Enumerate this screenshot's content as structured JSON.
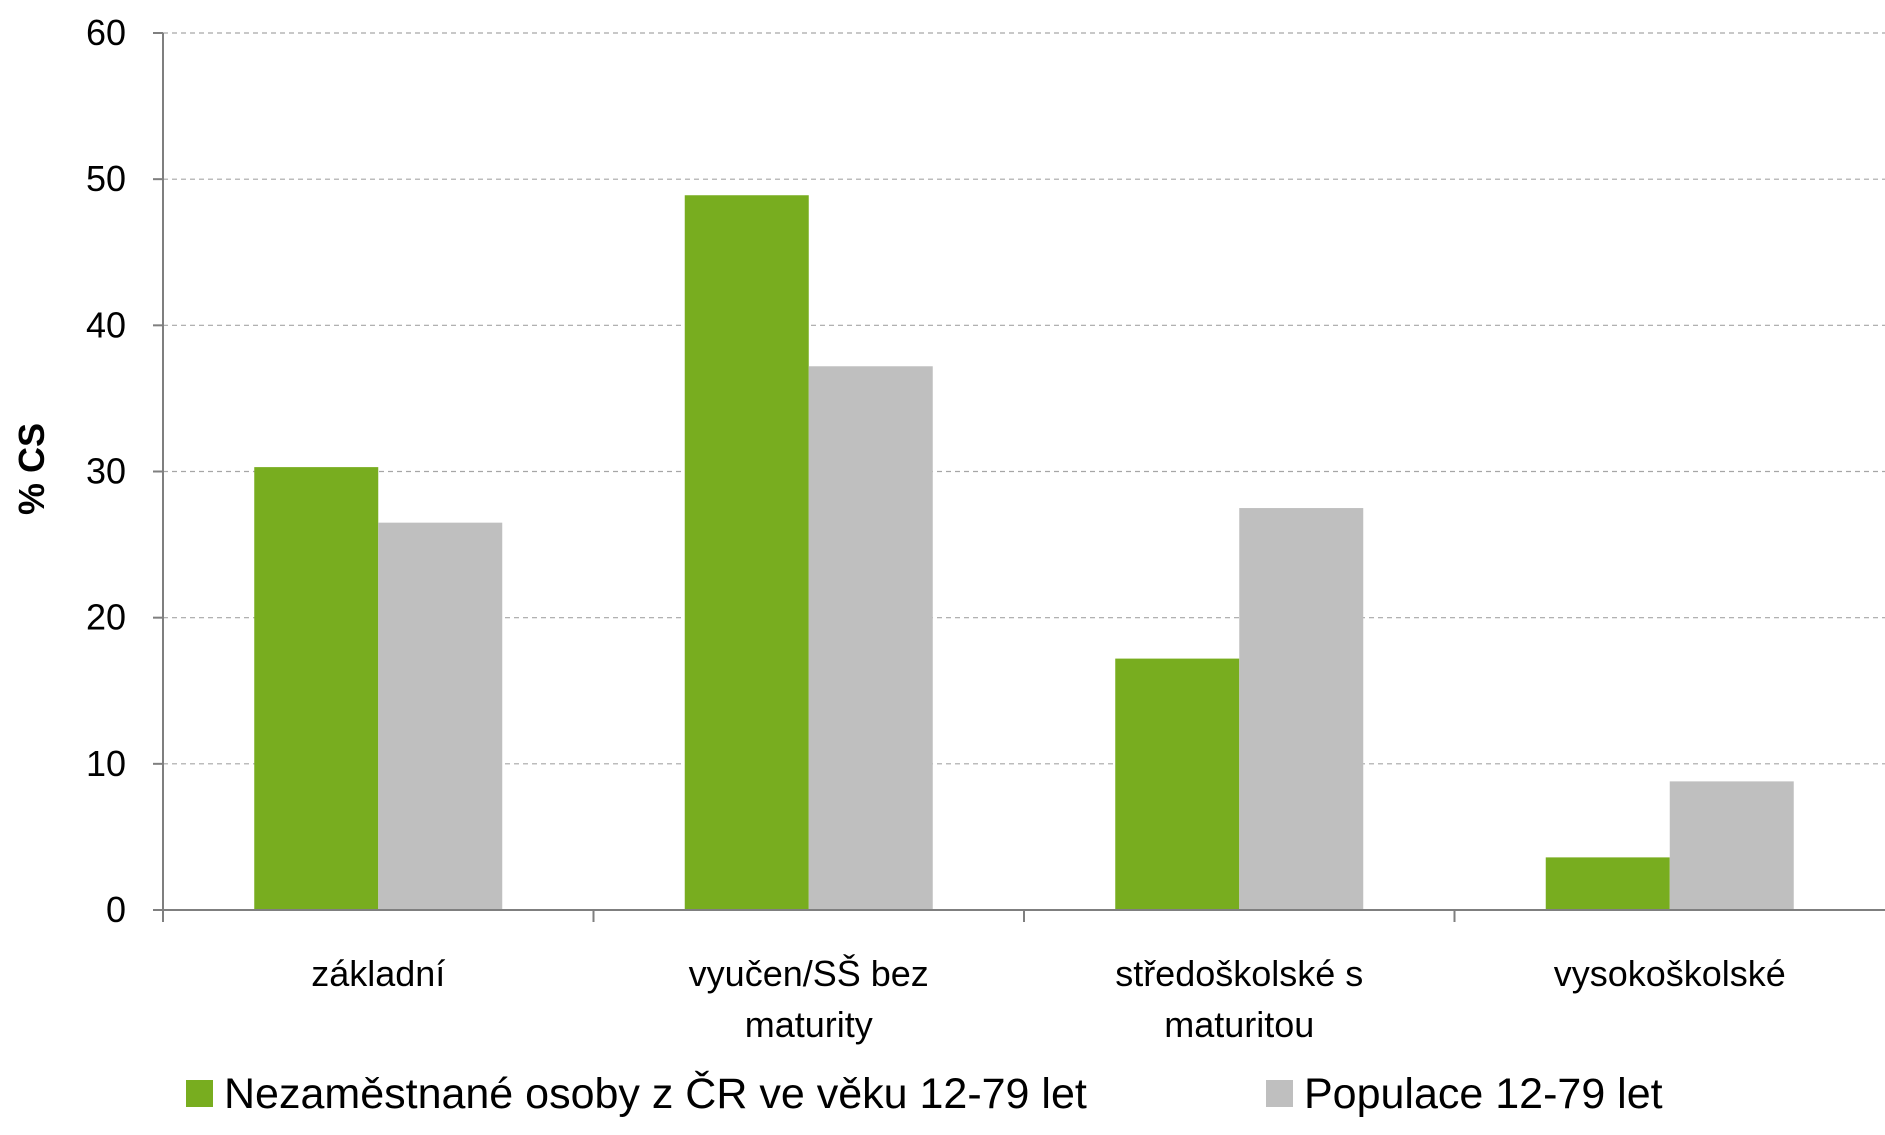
{
  "chart_data": {
    "type": "bar",
    "categories": [
      [
        "základní"
      ],
      [
        "vyučen/SŠ bez",
        "maturity"
      ],
      [
        "středoškolské s",
        "maturitou"
      ],
      [
        "vysokoškolské"
      ]
    ],
    "series": [
      {
        "name": "Nezaměstnané osoby z ČR ve věku 12-79 let",
        "color": "#78ad1f",
        "values": [
          30.3,
          48.9,
          17.2,
          3.6
        ]
      },
      {
        "name": "Populace 12-79 let",
        "color": "#bfbfbf",
        "values": [
          26.5,
          37.2,
          27.5,
          8.8
        ]
      }
    ],
    "ylabel": "% CS",
    "ylim": [
      0,
      60
    ],
    "yticks": [
      0,
      10,
      20,
      30,
      40,
      50,
      60
    ],
    "grid": true,
    "legend_position": "bottom"
  }
}
